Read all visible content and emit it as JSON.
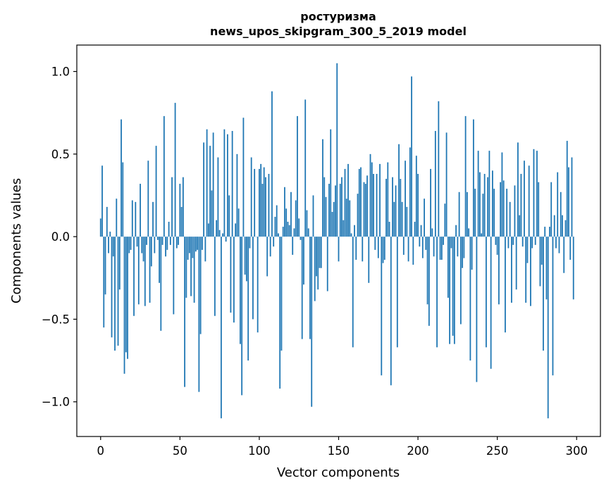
{
  "chart_data": {
    "type": "bar",
    "title_lines": [
      "ростуризма",
      "news_upos_skipgram_300_5_2019 model"
    ],
    "xlabel": "Vector components",
    "ylabel": "Components values",
    "xlim": [
      -15,
      315
    ],
    "ylim": [
      -1.21,
      1.16
    ],
    "xticks": [
      0,
      50,
      100,
      150,
      200,
      250,
      300
    ],
    "xtick_labels": [
      "0",
      "50",
      "100",
      "150",
      "200",
      "250",
      "300"
    ],
    "yticks": [
      -1.0,
      -0.5,
      0.0,
      0.5,
      1.0
    ],
    "ytick_labels": [
      "−1.0",
      "−0.5",
      "0.0",
      "0.5",
      "1.0"
    ],
    "bar_color": "#1f77b4",
    "grid": false,
    "values": [
      0.11,
      0.43,
      -0.55,
      -0.35,
      0.18,
      -0.1,
      0.03,
      -0.61,
      -0.12,
      -0.69,
      0.23,
      -0.66,
      -0.32,
      0.71,
      0.45,
      -0.83,
      -0.7,
      -0.74,
      -0.1,
      -0.08,
      0.22,
      -0.48,
      0.21,
      -0.06,
      -0.41,
      0.32,
      -0.1,
      -0.15,
      -0.42,
      -0.05,
      0.46,
      -0.4,
      -0.18,
      0.21,
      -0.1,
      0.55,
      -0.02,
      -0.28,
      -0.57,
      -0.05,
      0.73,
      -0.12,
      -0.08,
      0.09,
      -0.05,
      0.36,
      -0.47,
      0.81,
      -0.07,
      -0.05,
      0.32,
      0.18,
      0.36,
      -0.91,
      -0.37,
      -0.14,
      -0.1,
      -0.36,
      -0.13,
      -0.4,
      -0.09,
      -0.08,
      -0.94,
      -0.59,
      -0.08,
      0.57,
      -0.15,
      0.65,
      0.08,
      0.55,
      0.28,
      0.63,
      -0.48,
      0.1,
      0.48,
      0.04,
      -1.1,
      0.02,
      0.65,
      -0.03,
      0.62,
      0.25,
      -0.46,
      0.64,
      -0.52,
      0.08,
      0.5,
      0.17,
      -0.65,
      -0.96,
      0.72,
      -0.23,
      -0.27,
      -0.75,
      -0.07,
      0.48,
      -0.5,
      0.41,
      0.0,
      -0.58,
      0.41,
      0.44,
      0.32,
      0.42,
      0.36,
      -0.24,
      0.38,
      -0.12,
      0.88,
      -0.06,
      0.12,
      0.19,
      0.02,
      -0.92,
      -0.69,
      0.06,
      0.3,
      0.17,
      0.09,
      0.07,
      0.27,
      -0.11,
      0.05,
      0.22,
      0.73,
      0.11,
      -0.02,
      -0.62,
      -0.29,
      0.83,
      0.16,
      0.05,
      -0.62,
      -1.03,
      0.25,
      -0.39,
      -0.24,
      -0.32,
      -0.19,
      -0.19,
      0.59,
      0.36,
      0.24,
      -0.33,
      0.32,
      0.65,
      0.15,
      0.21,
      0.31,
      1.05,
      -0.15,
      0.32,
      0.36,
      0.1,
      0.41,
      0.23,
      0.44,
      0.22,
      0.02,
      -0.67,
      0.07,
      -0.14,
      0.26,
      0.41,
      0.42,
      -0.15,
      0.33,
      0.32,
      0.37,
      -0.28,
      0.5,
      0.45,
      0.38,
      -0.08,
      0.38,
      -0.13,
      0.44,
      -0.84,
      -0.16,
      -0.14,
      0.35,
      0.45,
      0.09,
      -0.9,
      0.36,
      0.21,
      0.31,
      -0.67,
      0.56,
      0.35,
      0.21,
      -0.11,
      0.46,
      0.18,
      -0.15,
      0.54,
      0.97,
      -0.17,
      0.09,
      0.49,
      0.38,
      -0.06,
      0.07,
      -0.13,
      0.23,
      -0.08,
      -0.41,
      -0.54,
      0.41,
      0.05,
      -0.12,
      0.64,
      -0.67,
      0.82,
      -0.14,
      -0.14,
      -0.05,
      0.2,
      0.63,
      -0.37,
      -0.65,
      -0.07,
      -0.6,
      -0.65,
      0.07,
      -0.12,
      0.27,
      -0.53,
      -0.19,
      -0.13,
      0.73,
      0.27,
      0.05,
      -0.75,
      -0.2,
      0.71,
      0.29,
      -0.88,
      0.52,
      0.39,
      0.02,
      0.26,
      0.38,
      -0.67,
      0.36,
      0.52,
      -0.8,
      0.4,
      0.29,
      -0.05,
      -0.11,
      -0.41,
      0.33,
      0.51,
      0.34,
      -0.58,
      0.29,
      -0.07,
      0.21,
      -0.4,
      -0.05,
      0.31,
      -0.32,
      0.57,
      0.13,
      0.38,
      -0.06,
      0.46,
      -0.4,
      -0.16,
      0.43,
      -0.42,
      -0.07,
      0.53,
      -0.05,
      0.52,
      0.33,
      -0.3,
      -0.17,
      -0.69,
      0.06,
      -0.38,
      -1.1,
      0.06,
      0.33,
      -0.84,
      0.13,
      -0.07,
      0.39,
      -0.1,
      0.27,
      0.13,
      -0.22,
      0.1,
      0.58,
      0.42,
      -0.14,
      0.48,
      -0.38
    ]
  }
}
